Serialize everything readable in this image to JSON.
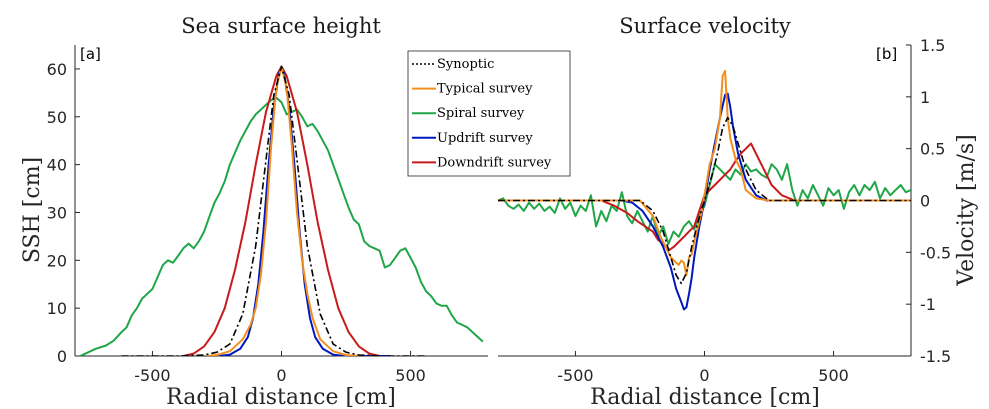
{
  "chart_data": [
    {
      "type": "line",
      "title": "Sea surface height",
      "panel_label": "[a]",
      "xlabel": "Radial distance [cm]",
      "ylabel": "SSH [cm]",
      "xlim": [
        -800,
        800
      ],
      "ylim": [
        0,
        65
      ],
      "xticks": [
        -500,
        0,
        500
      ],
      "yticks": [
        0,
        10,
        20,
        30,
        40,
        50,
        60
      ],
      "grid": false,
      "legend": {
        "placement": "top-right",
        "entries": [
          "Synoptic",
          "Typical survey",
          "Spiral survey",
          "Updrift survey",
          "Downdrift survey"
        ]
      },
      "series": [
        {
          "name": "Synoptic",
          "color": "#000000",
          "style": "dashdot",
          "x": [
            -620,
            -400,
            -300,
            -250,
            -200,
            -150,
            -100,
            -60,
            -30,
            0,
            30,
            60,
            100,
            150,
            200,
            250,
            300,
            400,
            560
          ],
          "y": [
            0,
            0,
            0.2,
            0.8,
            2.5,
            8.8,
            23,
            41,
            54.5,
            60.5,
            54.5,
            41,
            23,
            8.8,
            2.5,
            0.8,
            0.2,
            0,
            0
          ]
        },
        {
          "name": "Typical survey",
          "color": "#f28e1c",
          "style": "solid",
          "x": [
            -290,
            -250,
            -200,
            -150,
            -120,
            -100,
            -80,
            -60,
            -40,
            -20,
            0,
            20,
            40,
            60,
            80,
            100,
            120,
            150,
            200,
            250,
            300
          ],
          "y": [
            0,
            0.2,
            1,
            3.5,
            6.5,
            10,
            17,
            28,
            44,
            56,
            60.5,
            56,
            44,
            30,
            20,
            13,
            8,
            3.5,
            1,
            0.2,
            0
          ]
        },
        {
          "name": "Spiral survey",
          "color": "#1fa647",
          "style": "solid",
          "x": [
            -780,
            -720,
            -680,
            -650,
            -620,
            -600,
            -580,
            -560,
            -540,
            -520,
            -500,
            -480,
            -460,
            -440,
            -420,
            -400,
            -380,
            -360,
            -340,
            -320,
            -300,
            -280,
            -260,
            -240,
            -220,
            -200,
            -180,
            -160,
            -140,
            -120,
            -100,
            -80,
            -60,
            -40,
            -20,
            0,
            20,
            40,
            60,
            80,
            100,
            120,
            140,
            160,
            180,
            200,
            220,
            240,
            260,
            280,
            300,
            320,
            340,
            360,
            380,
            400,
            420,
            440,
            460,
            480,
            500,
            520,
            540,
            560,
            580,
            600,
            620,
            640,
            660,
            680,
            700,
            720,
            740,
            760,
            780
          ],
          "y": [
            0,
            1.5,
            2.2,
            3.2,
            5,
            6,
            8.5,
            10,
            12,
            13,
            14,
            16.5,
            19,
            20,
            19.5,
            21,
            22.5,
            23.5,
            22.5,
            24,
            26,
            29,
            32,
            34,
            36.5,
            40,
            42.5,
            45,
            47,
            49,
            50.5,
            51.5,
            52.5,
            53.5,
            54,
            53,
            50.5,
            51,
            51.5,
            50,
            48,
            48.5,
            47,
            45,
            43,
            40,
            37,
            34,
            31,
            28.5,
            27.5,
            24,
            23,
            22.5,
            22,
            18.5,
            19,
            20.5,
            22,
            22.5,
            20.5,
            18.5,
            15.5,
            13.5,
            12.5,
            11,
            10.5,
            10.5,
            8.5,
            7,
            6.5,
            6,
            5,
            4,
            3
          ]
        },
        {
          "name": "Updrift survey",
          "color": "#0018bf",
          "style": "solid",
          "x": [
            -240,
            -200,
            -160,
            -130,
            -110,
            -90,
            -70,
            -50,
            -30,
            -10,
            0,
            10,
            30,
            50,
            70,
            90,
            110,
            130,
            160,
            200,
            240,
            380,
            420
          ],
          "y": [
            0,
            0.3,
            1.5,
            4,
            8,
            15,
            26,
            40,
            52,
            59,
            60.5,
            59,
            52,
            40,
            26,
            15,
            8,
            4,
            1.5,
            0.3,
            0,
            0,
            0
          ]
        },
        {
          "name": "Downdrift survey",
          "color": "#c81a1a",
          "style": "solid",
          "x": [
            -380,
            -340,
            -300,
            -260,
            -220,
            -180,
            -140,
            -100,
            -60,
            -20,
            0,
            20,
            60,
            100,
            140,
            180,
            220,
            260,
            300,
            340,
            380
          ],
          "y": [
            0,
            0.5,
            2,
            5,
            10,
            18,
            28,
            40,
            51,
            58.5,
            60.5,
            58.5,
            51,
            40,
            28,
            18,
            10,
            5,
            2,
            0.5,
            0
          ]
        }
      ]
    },
    {
      "type": "line",
      "title": "Surface velocity",
      "panel_label": "[b]",
      "xlabel": "Radial distance [cm]",
      "ylabel": "Velocity [m/s]",
      "xlim": [
        -800,
        800
      ],
      "ylim": [
        -1.5,
        1.5
      ],
      "xticks": [
        -500,
        0,
        500
      ],
      "yticks": [
        -1.5,
        -1,
        -0.5,
        0,
        0.5,
        1,
        1.5
      ],
      "ytick_labels": [
        "-1.5",
        "-1",
        "-0.5",
        "0",
        "0.5",
        "1",
        "1.5"
      ],
      "grid": false,
      "series": [
        {
          "name": "Synoptic",
          "color": "#000000",
          "style": "dashdot",
          "x": [
            -800,
            -250,
            -200,
            -160,
            -130,
            -110,
            -90,
            -70,
            -50,
            -30,
            -10,
            0,
            10,
            30,
            50,
            70,
            90,
            110,
            130,
            160,
            200,
            250,
            800
          ],
          "y": [
            0,
            0,
            -0.1,
            -0.3,
            -0.55,
            -0.72,
            -0.8,
            -0.7,
            -0.45,
            -0.25,
            -0.08,
            0,
            0.08,
            0.25,
            0.45,
            0.7,
            0.8,
            0.72,
            0.55,
            0.3,
            0.1,
            0,
            0
          ]
        },
        {
          "name": "Typical survey",
          "color": "#f28e1c",
          "style": "solid",
          "x": [
            -800,
            -250,
            -200,
            -170,
            -150,
            -130,
            -110,
            -100,
            -90,
            -80,
            -70,
            -60,
            -50,
            -40,
            -30,
            -20,
            -10,
            0,
            20,
            40,
            60,
            70,
            80,
            90,
            100,
            120,
            140,
            160,
            200,
            250,
            800
          ],
          "y": [
            0,
            0,
            -0.15,
            -0.35,
            -0.45,
            -0.55,
            -0.6,
            -0.62,
            -0.58,
            -0.6,
            -0.72,
            -0.55,
            -0.52,
            -0.4,
            -0.3,
            -0.2,
            -0.1,
            0.05,
            0.35,
            0.5,
            0.8,
            1.2,
            1.25,
            0.8,
            0.6,
            0.4,
            0.3,
            0.1,
            0.02,
            0,
            0
          ]
        },
        {
          "name": "Spiral survey",
          "color": "#1fa647",
          "style": "solid",
          "x": [
            -800,
            -780,
            -760,
            -740,
            -720,
            -700,
            -680,
            -660,
            -640,
            -620,
            -600,
            -580,
            -560,
            -540,
            -520,
            -500,
            -480,
            -460,
            -440,
            -420,
            -400,
            -380,
            -360,
            -340,
            -320,
            -300,
            -280,
            -260,
            -240,
            -220,
            -200,
            -180,
            -160,
            -140,
            -120,
            -100,
            -80,
            -60,
            -40,
            -20,
            0,
            20,
            40,
            60,
            80,
            100,
            120,
            140,
            160,
            180,
            200,
            220,
            240,
            260,
            280,
            300,
            320,
            340,
            360,
            380,
            400,
            420,
            440,
            460,
            480,
            500,
            520,
            540,
            560,
            580,
            600,
            620,
            640,
            660,
            680,
            700,
            720,
            740,
            760,
            780,
            800
          ],
          "y": [
            0,
            0.02,
            -0.05,
            -0.08,
            -0.04,
            -0.1,
            -0.02,
            -0.08,
            -0.03,
            -0.1,
            -0.06,
            -0.12,
            0.02,
            -0.08,
            -0.02,
            -0.15,
            -0.05,
            -0.1,
            0.05,
            -0.25,
            -0.1,
            -0.2,
            -0.05,
            -0.1,
            0.08,
            -0.15,
            -0.22,
            -0.1,
            -0.2,
            -0.3,
            -0.15,
            -0.35,
            -0.25,
            -0.42,
            -0.3,
            -0.35,
            -0.25,
            -0.2,
            -0.28,
            -0.15,
            -0.05,
            0.15,
            0.35,
            0.3,
            0.25,
            0.2,
            0.3,
            0.25,
            0.35,
            0.28,
            0.3,
            0.25,
            0.22,
            0.35,
            0.3,
            0.2,
            0.35,
            0.1,
            -0.05,
            0.1,
            0.02,
            0.15,
            0.05,
            -0.05,
            0.12,
            0.05,
            0.1,
            -0.08,
            0.08,
            0.15,
            0.05,
            0.15,
            0.1,
            0.18,
            0.02,
            0.12,
            0.05,
            0.1,
            0.15,
            0.08,
            0.1
          ]
        },
        {
          "name": "Updrift survey",
          "color": "#0018bf",
          "style": "solid",
          "x": [
            -800,
            -320,
            -280,
            -240,
            -200,
            -160,
            -130,
            -110,
            -90,
            -80,
            -70,
            -60,
            -50,
            -40,
            -20,
            0,
            20,
            40,
            60,
            80,
            90,
            100,
            110,
            130,
            160,
            200,
            240,
            800
          ],
          "y": [
            0,
            0,
            -0.02,
            -0.1,
            -0.25,
            -0.45,
            -0.65,
            -0.85,
            -0.98,
            -1.05,
            -1.03,
            -0.9,
            -0.75,
            -0.55,
            -0.25,
            0,
            0.3,
            0.55,
            0.8,
            1.02,
            1.03,
            0.9,
            0.72,
            0.45,
            0.2,
            0.05,
            0,
            0
          ]
        },
        {
          "name": "Downdrift survey",
          "color": "#c81a1a",
          "style": "solid",
          "x": [
            -800,
            -400,
            -350,
            -300,
            -260,
            -230,
            -200,
            -180,
            -160,
            -140,
            -120,
            -100,
            -80,
            -60,
            -40,
            -20,
            0,
            20,
            40,
            60,
            80,
            100,
            120,
            140,
            160,
            180,
            200,
            230,
            260,
            300,
            350,
            400,
            800
          ],
          "y": [
            0,
            0,
            -0.05,
            -0.12,
            -0.2,
            -0.25,
            -0.3,
            -0.38,
            -0.42,
            -0.48,
            -0.45,
            -0.4,
            -0.35,
            -0.3,
            -0.25,
            -0.1,
            0.05,
            0.1,
            0.15,
            0.2,
            0.25,
            0.3,
            0.38,
            0.45,
            0.5,
            0.55,
            0.45,
            0.3,
            0.15,
            0.05,
            0,
            0,
            0
          ]
        }
      ]
    }
  ]
}
